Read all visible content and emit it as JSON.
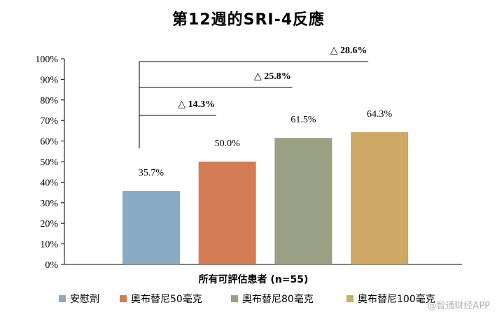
{
  "chart_data": {
    "type": "bar",
    "title": "第12週的SRI-4反應",
    "xlabel": "所有可評估患者 (n=55)",
    "ylabel": "",
    "ylim": [
      0,
      100
    ],
    "y_ticks": [
      "0%",
      "10%",
      "20%",
      "30%",
      "40%",
      "50%",
      "60%",
      "70%",
      "80%",
      "90%",
      "100%"
    ],
    "categories": [
      "安慰劑",
      "奧布替尼50毫克",
      "奧布替尼80毫克",
      "奧布替尼100毫克"
    ],
    "values": [
      35.7,
      50.0,
      61.5,
      64.3
    ],
    "value_labels": [
      "35.7%",
      "50.0%",
      "61.5%",
      "64.3%"
    ],
    "colors": [
      "#89aac5",
      "#d47c54",
      "#9aa084",
      "#cfa865"
    ],
    "comparisons": [
      {
        "from": "安慰劑",
        "to": "奧布替尼50毫克",
        "label": "△ 14.3%"
      },
      {
        "from": "安慰劑",
        "to": "奧布替尼80毫克",
        "label": "△ 25.8%"
      },
      {
        "from": "安慰劑",
        "to": "奧布替尼100毫克",
        "label": "△ 28.6%"
      }
    ],
    "legend_position": "bottom",
    "grid": false
  },
  "watermark": "@智通财经APP"
}
